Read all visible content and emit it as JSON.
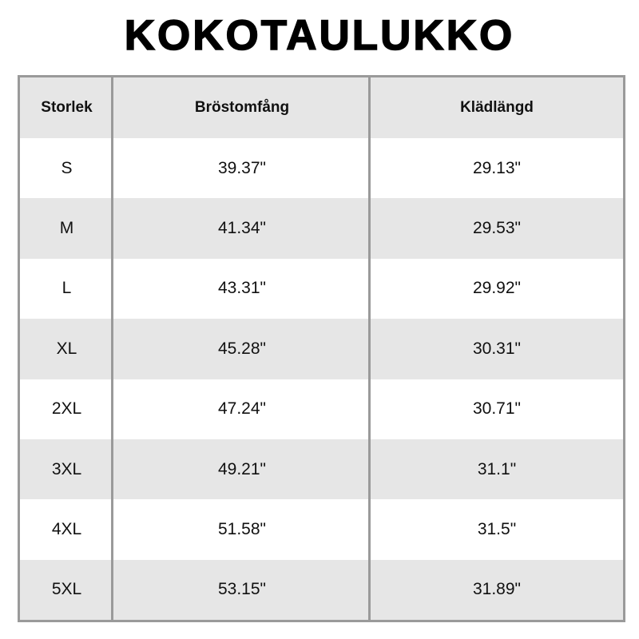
{
  "title": "KOKOTAULUKKO",
  "headers": [
    "Storlek",
    "Bröstomfång",
    "Klädlängd"
  ],
  "rows": [
    [
      "S",
      "39.37\"",
      "29.13\""
    ],
    [
      "M",
      "41.34\"",
      "29.53\""
    ],
    [
      "L",
      "43.31\"",
      "29.92\""
    ],
    [
      "XL",
      "45.28\"",
      "30.31\""
    ],
    [
      "2XL",
      "47.24\"",
      "30.71\""
    ],
    [
      "3XL",
      "49.21\"",
      "31.1\""
    ],
    [
      "4XL",
      "51.58\"",
      "31.5\""
    ],
    [
      "5XL",
      "53.15\"",
      "31.89\""
    ]
  ],
  "colors": {
    "border": "#9a9a9a",
    "stripe": "#e6e6e6"
  }
}
